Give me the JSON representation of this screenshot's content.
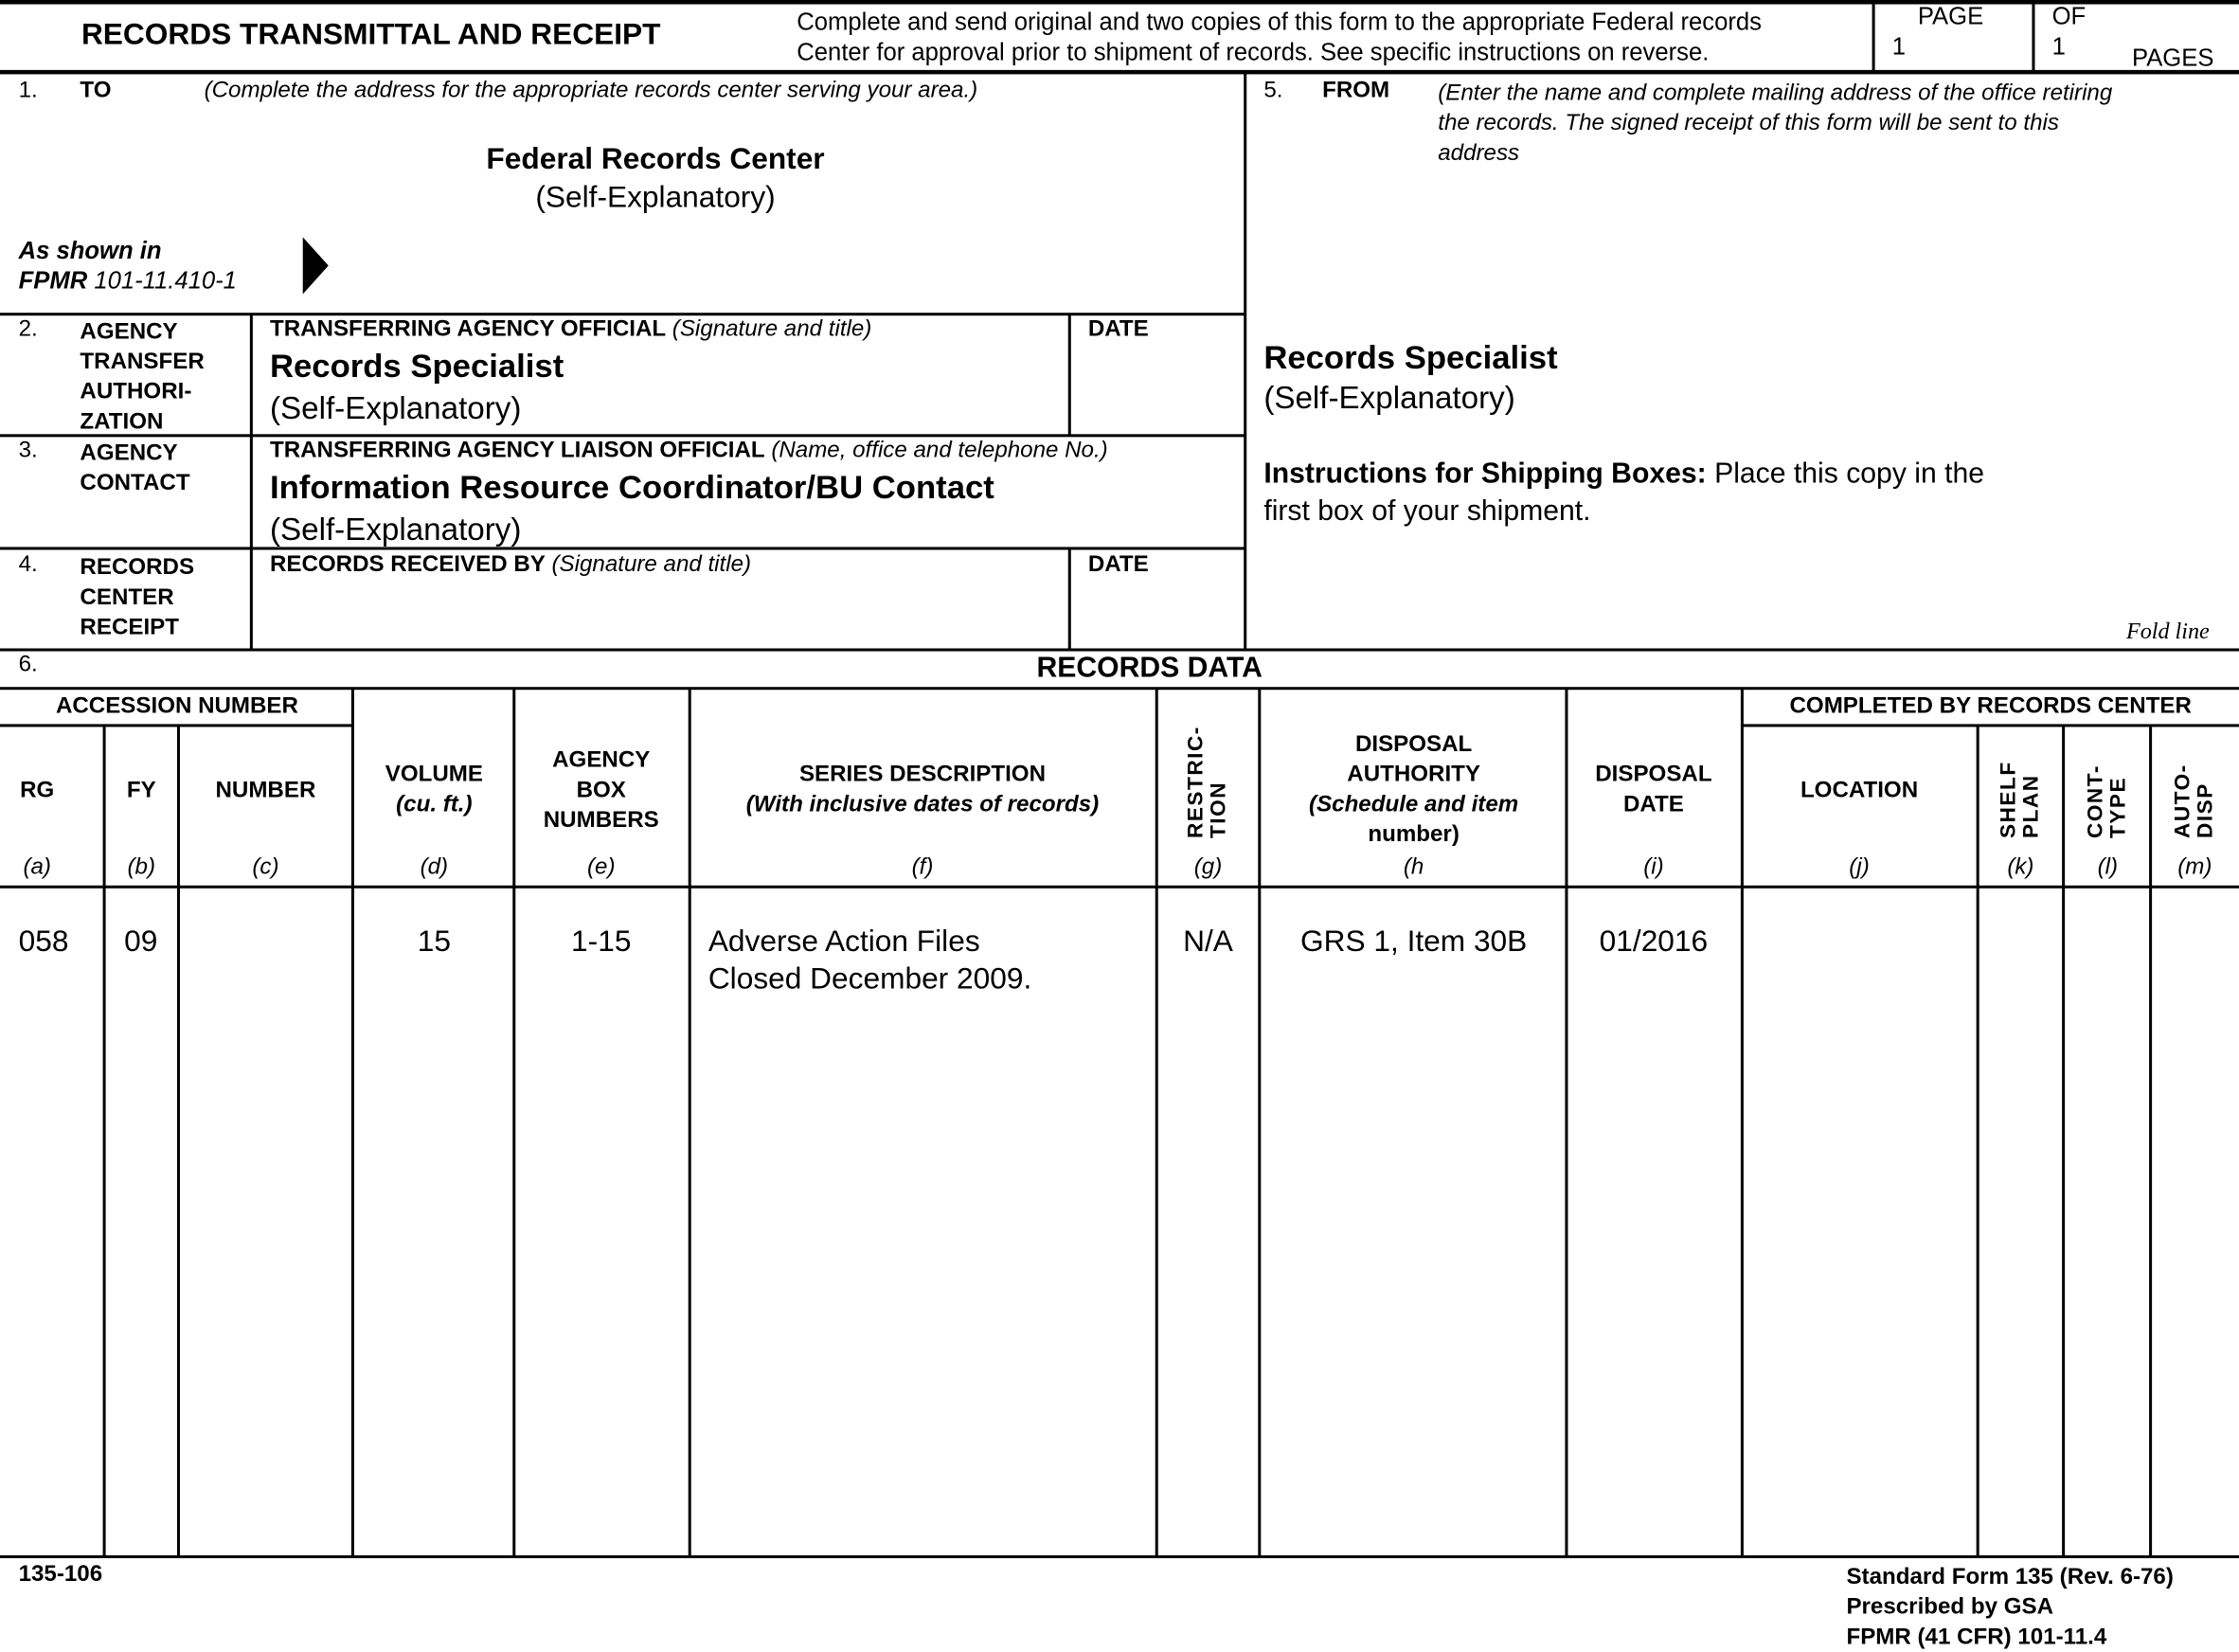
{
  "header": {
    "title": "RECORDS TRANSMITTAL AND RECEIPT",
    "instructions_line1": "Complete and send original and two copies of this form to the appropriate Federal records",
    "instructions_line2": "Center for approval prior to shipment of records.  See specific instructions on reverse.",
    "page_label": "PAGE",
    "page_value": "1",
    "of_label": "OF",
    "of_value": "1",
    "pages_label": "PAGES"
  },
  "to": {
    "num": "1.",
    "label": "TO",
    "hint": "(Complete the address for the appropriate records center serving your area.)",
    "name": "Federal Records Center",
    "sub": "(Self-Explanatory)",
    "shown_in": "As shown in",
    "fpmr": "FPMR",
    "fpmr_ref": " 101-11.410-1",
    "arrow_icon": "triangle-right"
  },
  "auth": {
    "num": "2.",
    "label_lines": [
      "AGENCY",
      "TRANSFER",
      "AUTHORI-",
      "ZATION"
    ],
    "official_label": "TRANSFERRING AGENCY OFFICIAL",
    "official_hint": " (Signature and title)",
    "name": "Records Specialist",
    "sub": "(Self-Explanatory)",
    "date_label": "DATE"
  },
  "contact": {
    "num": "3.",
    "label_lines": [
      "AGENCY",
      "CONTACT"
    ],
    "liaison_label": "TRANSFERRING AGENCY LIAISON OFFICIAL",
    "liaison_hint": " (Name, office and telephone No.)",
    "name": "Information Resource Coordinator/BU Contact",
    "sub": "(Self-Explanatory)"
  },
  "receipt": {
    "num": "4.",
    "label_lines": [
      "RECORDS",
      "CENTER",
      "RECEIPT"
    ],
    "received_label": "RECORDS RECEIVED BY",
    "received_hint": " (Signature and title)",
    "date_label": "DATE"
  },
  "from": {
    "num": "5.",
    "label": "FROM",
    "hint_lines": [
      "(Enter the name and complete mailing address of the office retiring",
      "the records.  The signed receipt of this form will be sent to this",
      "address"
    ],
    "name": "Records Specialist",
    "sub": "(Self-Explanatory)",
    "ship_bold": "Instructions for Shipping Boxes:",
    "ship_text": " Place this copy in the",
    "ship_text2": "first box of your shipment.",
    "fold": "Fold line"
  },
  "records": {
    "num": "6.",
    "title": "RECORDS DATA",
    "accession": "ACCESSION NUMBER",
    "completed": "COMPLETED BY RECORDS CENTER",
    "columns": [
      {
        "h": [
          "RG"
        ],
        "l": "(a)"
      },
      {
        "h": [
          "FY"
        ],
        "l": "(b)"
      },
      {
        "h": [
          "NUMBER"
        ],
        "l": "(c)"
      },
      {
        "h": [
          "VOLUME",
          "(cu. ft.)"
        ],
        "l": "(d)"
      },
      {
        "h": [
          "AGENCY",
          "BOX",
          "NUMBERS"
        ],
        "l": "(e)"
      },
      {
        "h": [
          "SERIES DESCRIPTION",
          "(With inclusive dates of records)"
        ],
        "l": "(f)"
      },
      {
        "h": [
          "RESTRIC-",
          "TION"
        ],
        "l": "(g)"
      },
      {
        "h": [
          "DISPOSAL",
          "AUTHORITY",
          "(Schedule and item",
          "number)"
        ],
        "l": "(h"
      },
      {
        "h": [
          "DISPOSAL",
          "DATE"
        ],
        "l": "(i)"
      },
      {
        "h": [
          "LOCATION"
        ],
        "l": "(j)"
      },
      {
        "h": [
          "SHELF",
          "PLAN"
        ],
        "l": "(k)"
      },
      {
        "h": [
          "CONT-",
          "TYPE"
        ],
        "l": "(l)"
      },
      {
        "h": [
          "AUTO-",
          "DISP"
        ],
        "l": "(m)"
      }
    ],
    "rows": [
      {
        "rg": "058",
        "fy": "09",
        "number": "",
        "volume": "15",
        "boxes": "1-15",
        "desc1": "Adverse Action Files",
        "desc2": "Closed December 2009.",
        "restriction": "N/A",
        "authority": "GRS 1, Item 30B",
        "date": "01/2016",
        "location": "",
        "shelf": "",
        "cont": "",
        "auto": ""
      }
    ]
  },
  "footer": {
    "code": "135-106",
    "sf": "Standard Form 135 (Rev. 6-76)",
    "gsa": "Prescribed by GSA",
    "fpmr": "FPMR (41 CFR) 101-11.4"
  }
}
